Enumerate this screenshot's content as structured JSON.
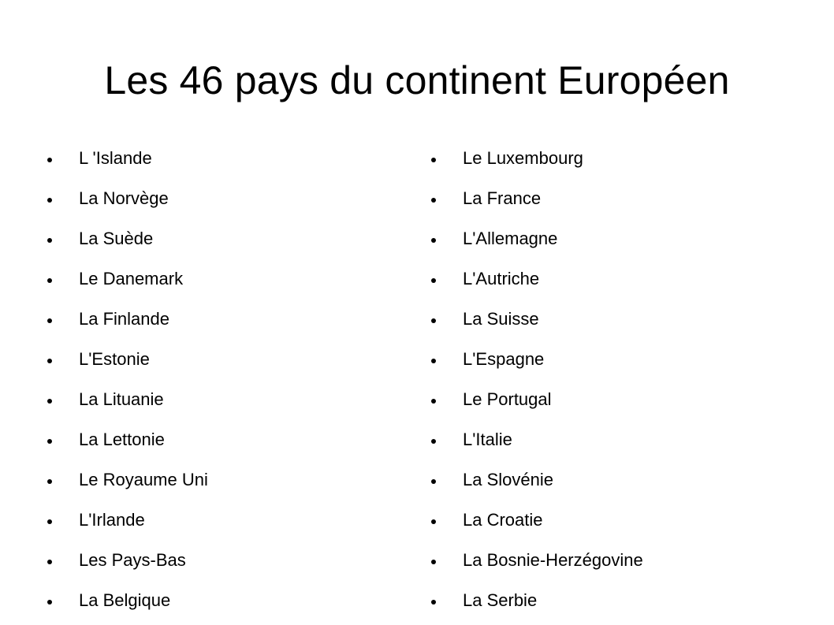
{
  "title": "Les 46 pays du continent Européen",
  "left_column": [
    "L 'Islande",
    "La Norvège",
    "La Suède",
    "Le Danemark",
    "La Finlande",
    "L'Estonie",
    "La Lituanie",
    "La Lettonie",
    "Le Royaume Uni",
    "L'Irlande",
    "Les Pays-Bas",
    "La Belgique"
  ],
  "right_column": [
    "Le Luxembourg",
    "La France",
    "L'Allemagne",
    "L'Autriche",
    "La Suisse",
    "L'Espagne",
    "Le Portugal",
    "L'Italie",
    "La Slovénie",
    "La Croatie",
    "La Bosnie-Herzégovine",
    "La Serbie"
  ]
}
